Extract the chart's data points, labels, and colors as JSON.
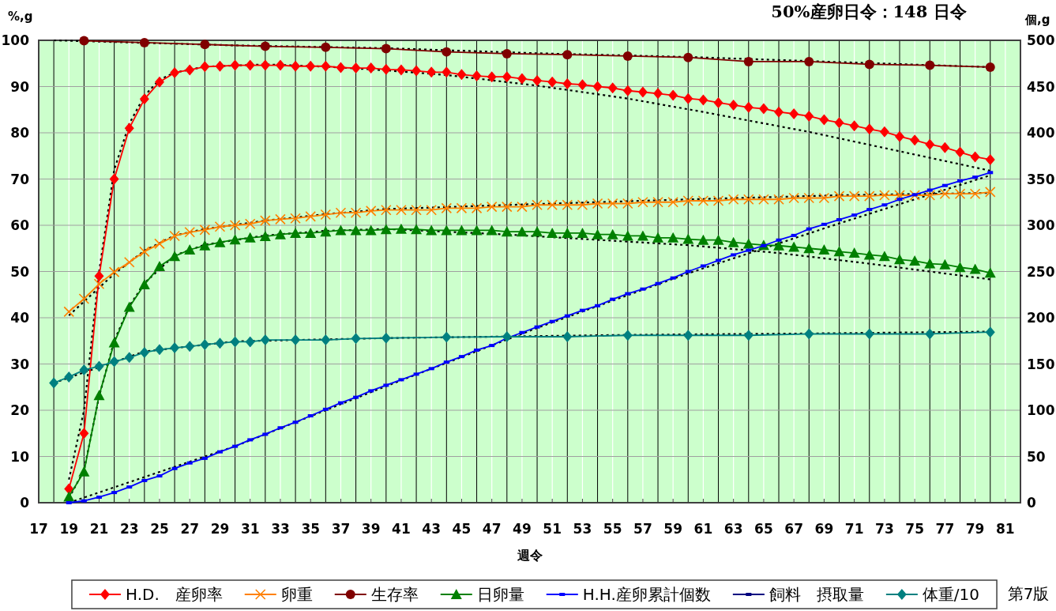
{
  "chart_data": {
    "type": "line",
    "title": "50%産卵日令：148 日令",
    "xlabel": "週令",
    "ylabel": "%,g",
    "y2label": "個,g",
    "annotations": [
      "第7版"
    ],
    "xlim": [
      17,
      82
    ],
    "xticks": [
      17,
      19,
      21,
      23,
      25,
      27,
      29,
      31,
      33,
      35,
      37,
      39,
      41,
      43,
      45,
      47,
      49,
      51,
      53,
      55,
      57,
      59,
      61,
      63,
      65,
      67,
      69,
      71,
      73,
      75,
      77,
      79,
      81
    ],
    "ylim": [
      0,
      100
    ],
    "yticks": [
      0,
      10,
      20,
      30,
      40,
      50,
      60,
      70,
      80,
      90,
      100
    ],
    "y2lim": [
      0,
      500
    ],
    "y2ticks": [
      0,
      50,
      100,
      150,
      200,
      250,
      300,
      350,
      400,
      450,
      500
    ],
    "grid": true,
    "legend": "bottom",
    "series": [
      {
        "color": "#000000",
        "line_style": "dotted",
        "marker": "none",
        "x": [
          19,
          20,
          21,
          22,
          23,
          24,
          25,
          26,
          28,
          32,
          36,
          40,
          44,
          50,
          56,
          61,
          68,
          74,
          80
        ],
        "values": [
          5,
          20,
          50,
          72,
          82,
          88,
          91.5,
          93,
          94.3,
          94.8,
          94.3,
          93.5,
          92.5,
          90.2,
          87.4,
          84.5,
          80.2,
          76.0,
          71.8
        ]
      },
      {
        "color": "#000000",
        "line_style": "dotted",
        "marker": "none",
        "x": [
          19,
          20,
          21,
          22,
          24,
          26,
          28,
          32,
          36,
          40,
          50,
          60,
          70,
          80
        ],
        "values": [
          40.5,
          43.5,
          46.5,
          49.5,
          54.5,
          57.8,
          59.2,
          61.0,
          62.4,
          63.5,
          64.6,
          65.6,
          66.5,
          67.0
        ]
      },
      {
        "color": "#000000",
        "line_style": "dotted",
        "marker": "none",
        "x": [
          18,
          30,
          40,
          50,
          60,
          70,
          80
        ],
        "values": [
          100,
          98.9,
          98.3,
          97.2,
          96.4,
          95.3,
          94.2
        ]
      },
      {
        "color": "#000000",
        "line_style": "dotted",
        "marker": "none",
        "x": [
          19,
          20,
          21,
          22,
          23,
          24,
          26,
          28,
          32,
          36,
          40,
          48,
          60,
          66,
          72,
          80
        ],
        "values": [
          1,
          7,
          23,
          35,
          42.5,
          47.5,
          53.5,
          55.8,
          57.8,
          58.8,
          59.2,
          58.0,
          55.7,
          54.0,
          51.7,
          48.3
        ]
      },
      {
        "color": "#000000",
        "line_style": "dotted",
        "marker": "none",
        "axis": "y2",
        "x": [
          19,
          30,
          40,
          50,
          60,
          70,
          80
        ],
        "values": [
          0,
          61,
          126,
          189,
          248,
          302,
          354
        ]
      },
      {
        "color": "#000000",
        "line_style": "dotted",
        "marker": "none",
        "x": [
          18,
          24,
          30,
          40,
          56,
          68,
          80
        ],
        "values": [
          25.9,
          32.7,
          34.9,
          35.6,
          36.3,
          36.6,
          37.0
        ]
      },
      {
        "name": "H.D.　産卵率",
        "color": "#ff0000",
        "marker": "diamond",
        "x": [
          19,
          20,
          21,
          22,
          23,
          24,
          25,
          26,
          27,
          28,
          29,
          30,
          31,
          32,
          33,
          34,
          35,
          36,
          37,
          38,
          39,
          40,
          41,
          42,
          43,
          44,
          45,
          46,
          47,
          48,
          49,
          50,
          51,
          52,
          53,
          54,
          55,
          56,
          57,
          58,
          59,
          60,
          61,
          62,
          63,
          64,
          65,
          66,
          67,
          68,
          69,
          70,
          71,
          72,
          73,
          74,
          75,
          76,
          77,
          78,
          79,
          80
        ],
        "values": [
          3,
          15,
          49,
          70,
          81,
          87.3,
          91,
          93,
          93.6,
          94.3,
          94.4,
          94.6,
          94.6,
          94.6,
          94.6,
          94.4,
          94.4,
          94.4,
          94.1,
          94.0,
          94.0,
          93.7,
          93.6,
          93.4,
          93.1,
          93.1,
          92.6,
          92.3,
          92.1,
          92.1,
          91.7,
          91.3,
          91.0,
          90.6,
          90.4,
          90.0,
          89.7,
          89.1,
          88.8,
          88.5,
          88.1,
          87.4,
          87.1,
          86.5,
          86.0,
          85.5,
          85.2,
          84.5,
          84.1,
          83.6,
          82.8,
          82.2,
          81.5,
          80.8,
          80.2,
          79.2,
          78.4,
          77.5,
          76.8,
          75.8,
          74.8,
          74.2
        ]
      },
      {
        "name": "卵重",
        "color": "#ff8000",
        "marker": "cross",
        "x": [
          19,
          20,
          21,
          22,
          23,
          24,
          25,
          26,
          27,
          28,
          29,
          30,
          31,
          32,
          33,
          34,
          35,
          36,
          37,
          38,
          39,
          40,
          41,
          42,
          43,
          44,
          45,
          46,
          47,
          48,
          49,
          50,
          51,
          52,
          53,
          54,
          55,
          56,
          57,
          58,
          59,
          60,
          61,
          62,
          63,
          64,
          65,
          66,
          67,
          68,
          69,
          70,
          71,
          72,
          73,
          74,
          75,
          76,
          77,
          78,
          79,
          80
        ],
        "values": [
          41.3,
          44.1,
          47.3,
          49.9,
          52.0,
          54.3,
          56.0,
          57.7,
          58.5,
          59.0,
          59.7,
          60.0,
          60.3,
          61.0,
          61.3,
          61.5,
          61.9,
          62.3,
          62.7,
          62.7,
          63.1,
          63.3,
          63.3,
          63.3,
          63.3,
          63.7,
          63.7,
          63.7,
          64.0,
          64.0,
          64.0,
          64.4,
          64.4,
          64.4,
          64.4,
          64.7,
          64.7,
          64.7,
          65.0,
          65.0,
          65.0,
          65.3,
          65.3,
          65.3,
          65.6,
          65.6,
          65.6,
          65.6,
          65.9,
          65.9,
          65.9,
          66.3,
          66.3,
          66.3,
          66.5,
          66.5,
          66.5,
          66.5,
          66.8,
          66.8,
          66.8,
          67.2
        ]
      },
      {
        "name": "生存率",
        "color": "#800000",
        "marker": "circle",
        "x": [
          20,
          24,
          28,
          32,
          36,
          40,
          44,
          48,
          52,
          56,
          60,
          64,
          68,
          72,
          76,
          80
        ],
        "values": [
          99.9,
          99.5,
          99.1,
          98.7,
          98.5,
          98.2,
          97.5,
          97.1,
          96.9,
          96.6,
          96.3,
          95.4,
          95.4,
          94.8,
          94.6,
          94.2
        ]
      },
      {
        "name": "日卵量",
        "color": "#008000",
        "marker": "triangle",
        "x": [
          19,
          20,
          21,
          22,
          23,
          24,
          25,
          26,
          27,
          28,
          29,
          30,
          31,
          32,
          33,
          34,
          35,
          36,
          37,
          38,
          39,
          40,
          41,
          42,
          43,
          44,
          45,
          46,
          47,
          48,
          49,
          50,
          51,
          52,
          53,
          54,
          55,
          56,
          57,
          58,
          59,
          60,
          61,
          62,
          63,
          64,
          65,
          66,
          67,
          68,
          69,
          70,
          71,
          72,
          73,
          74,
          75,
          76,
          77,
          78,
          79,
          80
        ],
        "values": [
          1.3,
          6.7,
          23.2,
          34.6,
          42.3,
          47.2,
          51.1,
          53.3,
          54.7,
          55.6,
          56.3,
          56.9,
          57.3,
          57.6,
          58.0,
          58.3,
          58.3,
          58.6,
          58.9,
          58.9,
          58.9,
          59.1,
          59.2,
          59.1,
          58.9,
          58.9,
          58.9,
          58.9,
          58.9,
          58.6,
          58.6,
          58.6,
          58.3,
          58.3,
          58.3,
          58.0,
          58.0,
          57.7,
          57.7,
          57.3,
          57.3,
          57.0,
          56.8,
          56.8,
          56.3,
          56.0,
          55.7,
          55.6,
          55.3,
          55.0,
          54.7,
          54.3,
          54.0,
          53.6,
          53.3,
          52.6,
          52.3,
          51.7,
          51.5,
          50.9,
          50.5,
          49.7
        ]
      },
      {
        "name": "H.H.産卵累計個数",
        "color": "#0000ff",
        "marker": "square",
        "axis": "y2",
        "x": [
          19,
          20,
          21,
          22,
          23,
          24,
          25,
          26,
          27,
          28,
          29,
          30,
          31,
          32,
          33,
          34,
          35,
          36,
          37,
          38,
          39,
          40,
          41,
          42,
          43,
          44,
          45,
          46,
          47,
          48,
          49,
          50,
          51,
          52,
          53,
          54,
          55,
          56,
          57,
          58,
          59,
          60,
          61,
          62,
          63,
          64,
          65,
          66,
          67,
          68,
          69,
          70,
          71,
          72,
          73,
          74,
          75,
          76,
          77,
          78,
          79,
          80
        ],
        "values": [
          0,
          2,
          6,
          11,
          17,
          24,
          29,
          37,
          43,
          48,
          55,
          61,
          68,
          74,
          81,
          87,
          94,
          101,
          108,
          114,
          121,
          127,
          133,
          139,
          145,
          152,
          158,
          165,
          170,
          178,
          184,
          190,
          196,
          202,
          208,
          213,
          220,
          226,
          231,
          237,
          243,
          250,
          256,
          262,
          268,
          273,
          278,
          284,
          289,
          296,
          301,
          306,
          311,
          317,
          322,
          328,
          333,
          338,
          343,
          348,
          352,
          357
        ]
      },
      {
        "name": "飼料　摂取量",
        "color": "#000080",
        "marker": "square"
      },
      {
        "name": "体重/10",
        "color": "#008080",
        "marker": "diamond",
        "x": [
          18,
          19,
          20,
          21,
          22,
          23,
          24,
          25,
          26,
          27,
          28,
          29,
          30,
          31,
          32,
          34,
          36,
          38,
          40,
          44,
          48,
          52,
          56,
          60,
          64,
          68,
          72,
          76,
          80
        ],
        "values": [
          25.9,
          27.2,
          28.7,
          29.5,
          30.5,
          31.4,
          32.5,
          33.1,
          33.5,
          33.8,
          34.2,
          34.5,
          34.8,
          34.8,
          35.2,
          35.2,
          35.2,
          35.5,
          35.6,
          35.8,
          35.9,
          35.9,
          36.2,
          36.2,
          36.2,
          36.5,
          36.5,
          36.5,
          36.9
        ]
      }
    ]
  }
}
